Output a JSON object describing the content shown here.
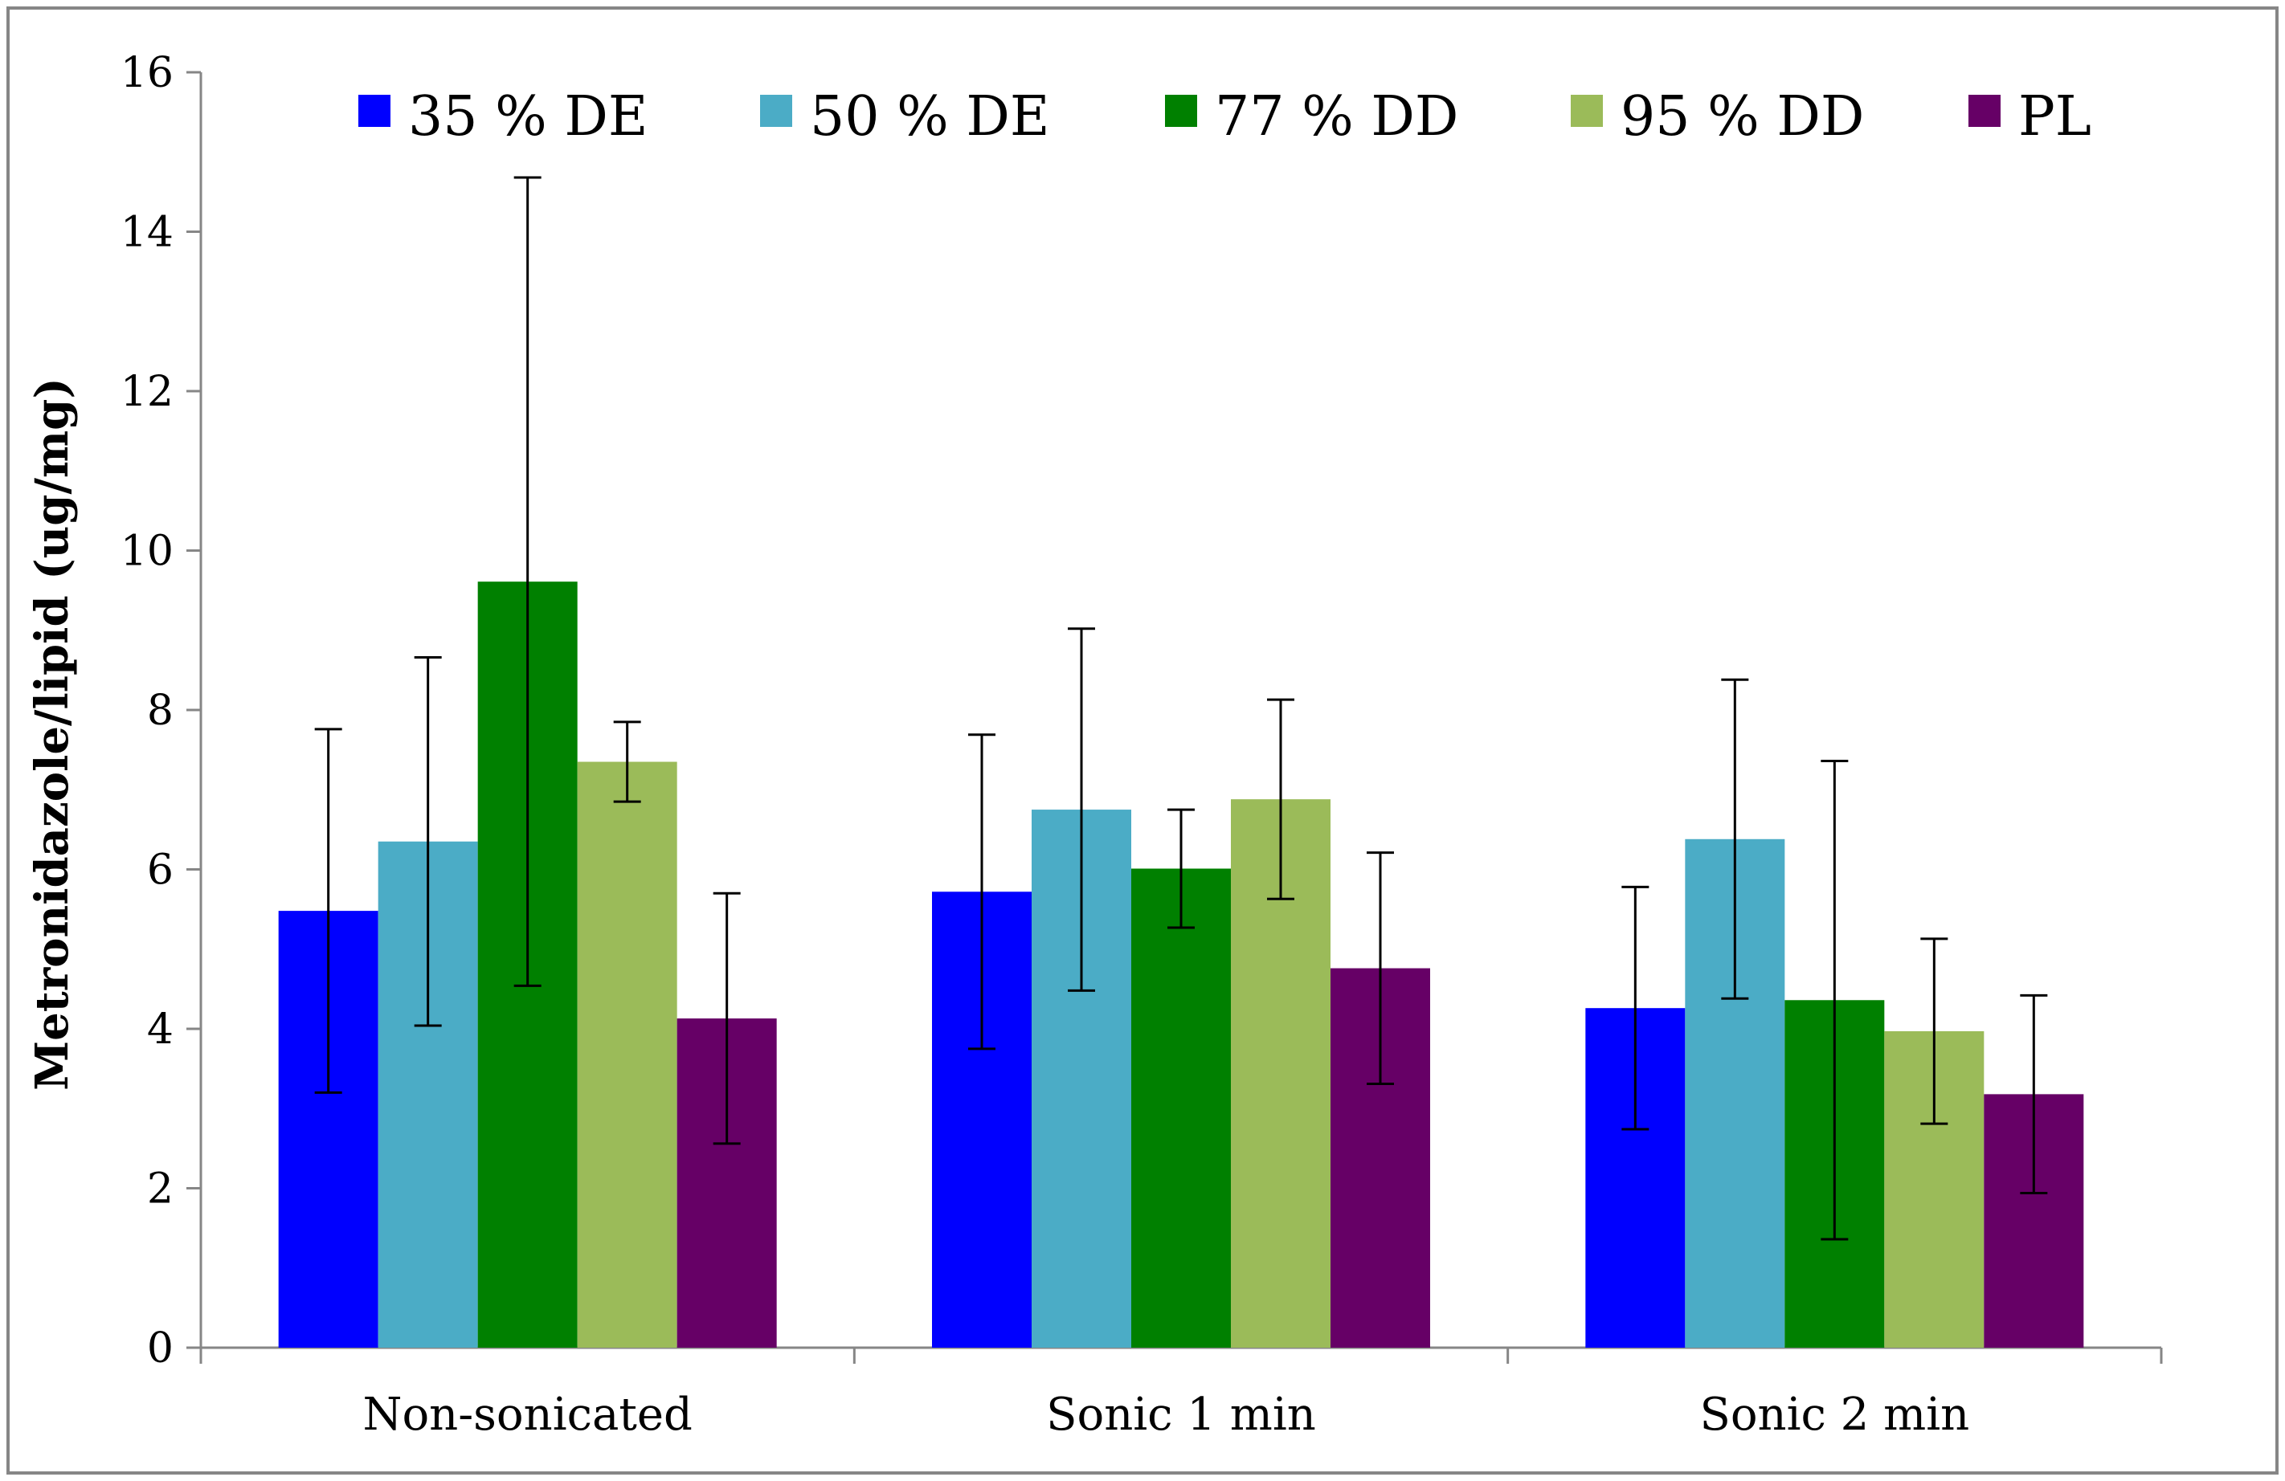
{
  "chart_data": {
    "type": "bar",
    "title": "",
    "xlabel": "",
    "ylabel": "Metronidazole/lipid (ug/mg)",
    "ylim": [
      0,
      16
    ],
    "yticks": [
      0,
      2,
      4,
      6,
      8,
      10,
      12,
      14,
      16
    ],
    "ytick_labels": [
      "0",
      "2",
      "4",
      "6",
      "8",
      "10",
      "12",
      "14",
      "16"
    ],
    "categories": [
      "Non-sonicated",
      "Sonic 1 min",
      "Sonic 2 min"
    ],
    "legend_position": "top",
    "grid": false,
    "series": [
      {
        "name": "35 % DE",
        "color": "#0000FF",
        "values": [
          5.48,
          5.72,
          4.26
        ],
        "errors": [
          2.28,
          1.97,
          1.52
        ]
      },
      {
        "name": "50 % DE",
        "color": "#4BACC6",
        "values": [
          6.35,
          6.75,
          6.38
        ],
        "errors": [
          2.31,
          2.27,
          2.0
        ]
      },
      {
        "name": "77 % DD",
        "color": "#008000",
        "values": [
          9.61,
          6.01,
          4.36
        ],
        "errors": [
          5.07,
          0.74,
          3.0
        ]
      },
      {
        "name": "95 % DD",
        "color": "#9BBB59",
        "values": [
          7.35,
          6.88,
          3.97
        ],
        "errors": [
          0.5,
          1.25,
          1.16
        ]
      },
      {
        "name": "PL",
        "color": "#660066",
        "values": [
          4.13,
          4.76,
          3.18
        ],
        "errors": [
          1.57,
          1.45,
          1.24
        ]
      }
    ]
  }
}
